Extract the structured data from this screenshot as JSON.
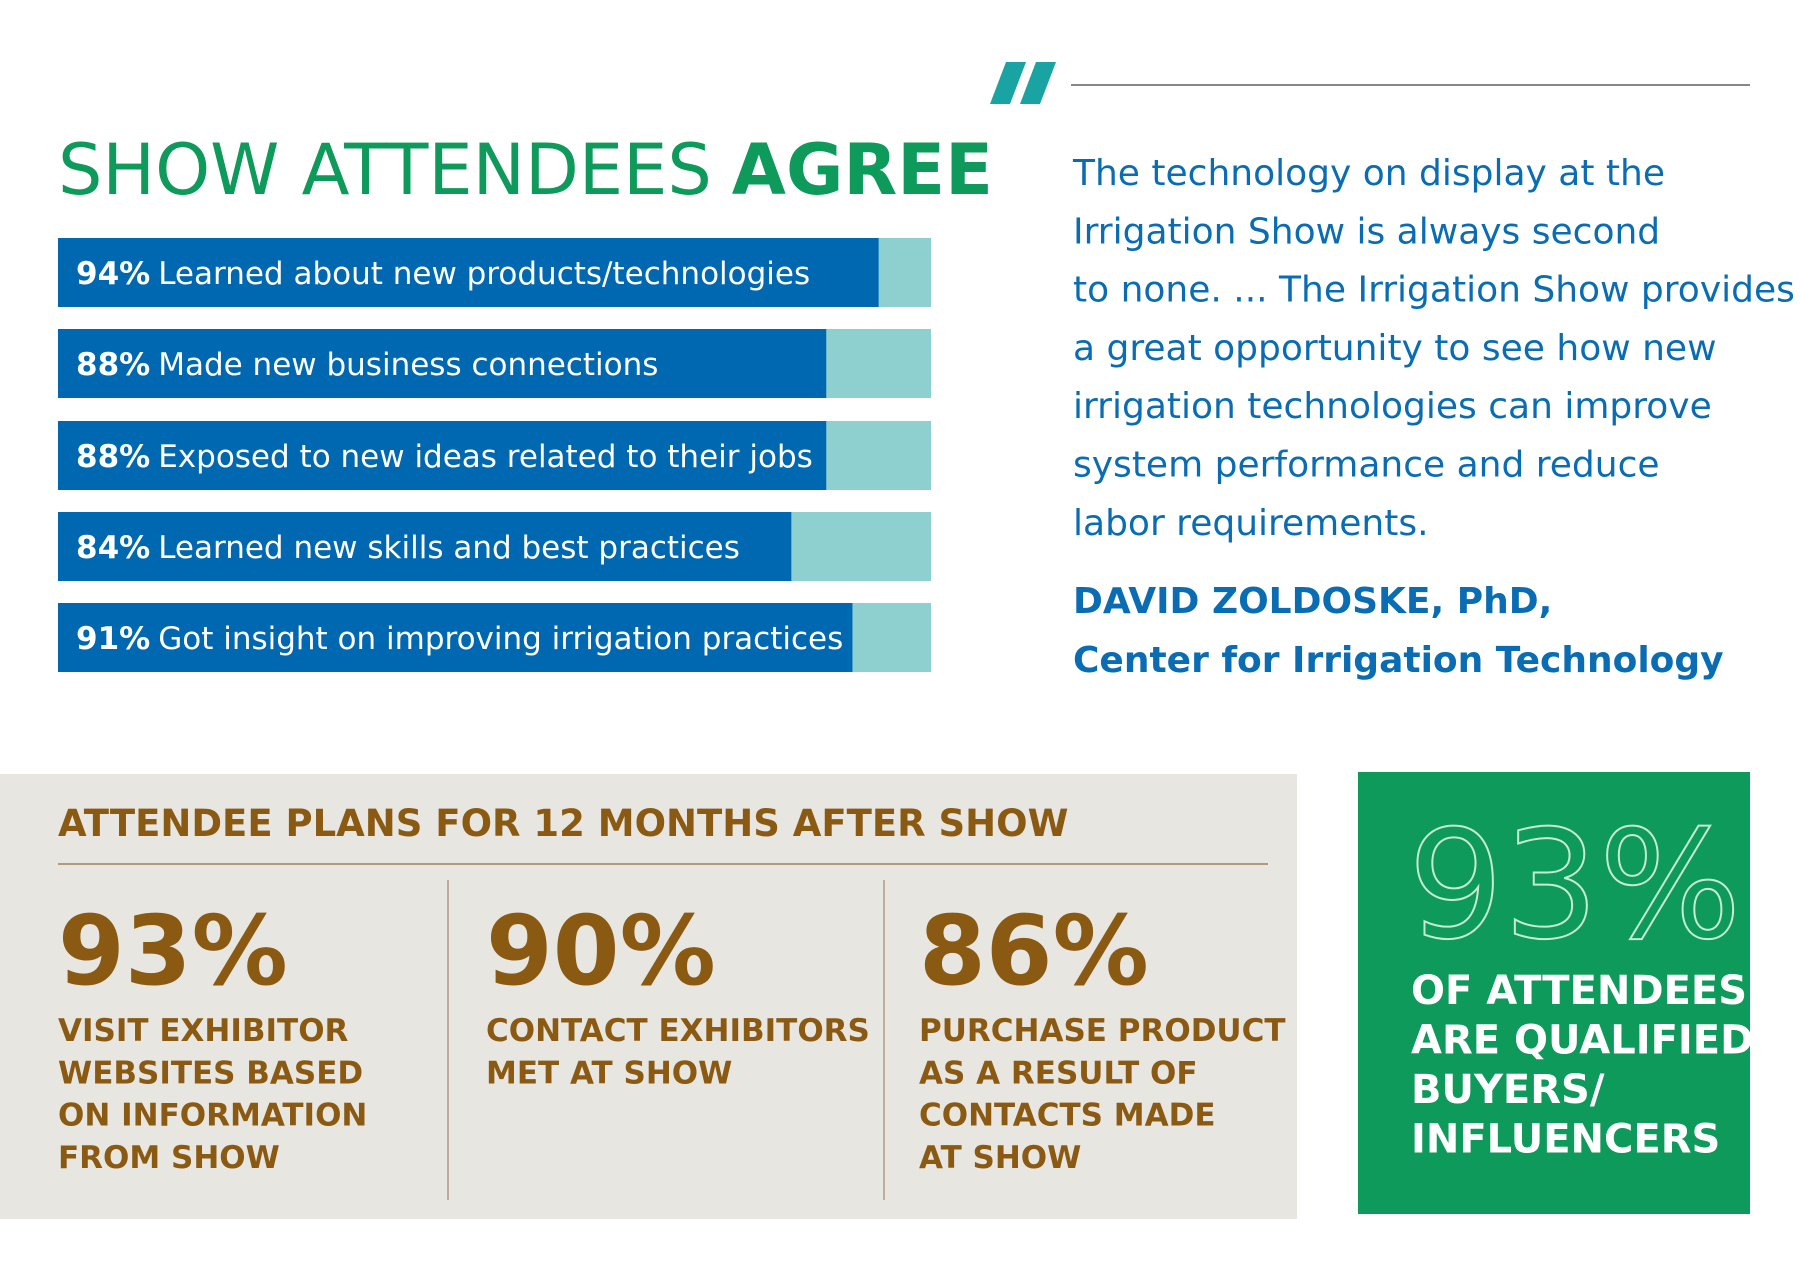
{
  "chart_data": {
    "type": "bar",
    "title": "SHOW ATTENDEES",
    "title_emphasis": "AGREE",
    "categories": [
      "Learned about new products/technologies",
      "Made new business connections",
      "Exposed to new ideas related to their jobs",
      "Learned new skills and best practices",
      "Got insight on improving irrigation practices"
    ],
    "values": [
      94,
      88,
      88,
      84,
      91
    ],
    "value_labels": [
      "94%",
      "88%",
      "88%",
      "84%",
      "91%"
    ],
    "color": "#0068b1",
    "track_color": "#8ecfcf",
    "xlim": [
      0,
      100
    ]
  },
  "quote": {
    "lines": [
      "The technology on display at the",
      "Irrigation Show is always second",
      "to none. ... The Irrigation Show provides",
      "a great opportunity to see how new",
      "irrigation technologies can improve",
      "system performance and reduce",
      "labor requirements."
    ],
    "author": [
      "DAVID ZOLDOSKE, PhD,",
      "Center for Irrigation Technology"
    ]
  },
  "plans": {
    "title": "ATTENDEE PLANS FOR 12 MONTHS AFTER SHOW",
    "items": [
      {
        "value": "93%",
        "lines": [
          "VISIT EXHIBITOR",
          "WEBSITES BASED",
          "ON INFORMATION",
          "FROM SHOW"
        ]
      },
      {
        "value": "90%",
        "lines": [
          "CONTACT EXHIBITORS",
          "MET AT SHOW"
        ]
      },
      {
        "value": "86%",
        "lines": [
          "PURCHASE PRODUCT",
          "AS A RESULT OF",
          "CONTACTS MADE",
          "AT SHOW"
        ]
      }
    ]
  },
  "callout": {
    "value": "93%",
    "lines": [
      "OF ATTENDEES",
      "ARE QUALIFIED",
      "BUYERS/",
      "INFLUENCERS"
    ]
  }
}
